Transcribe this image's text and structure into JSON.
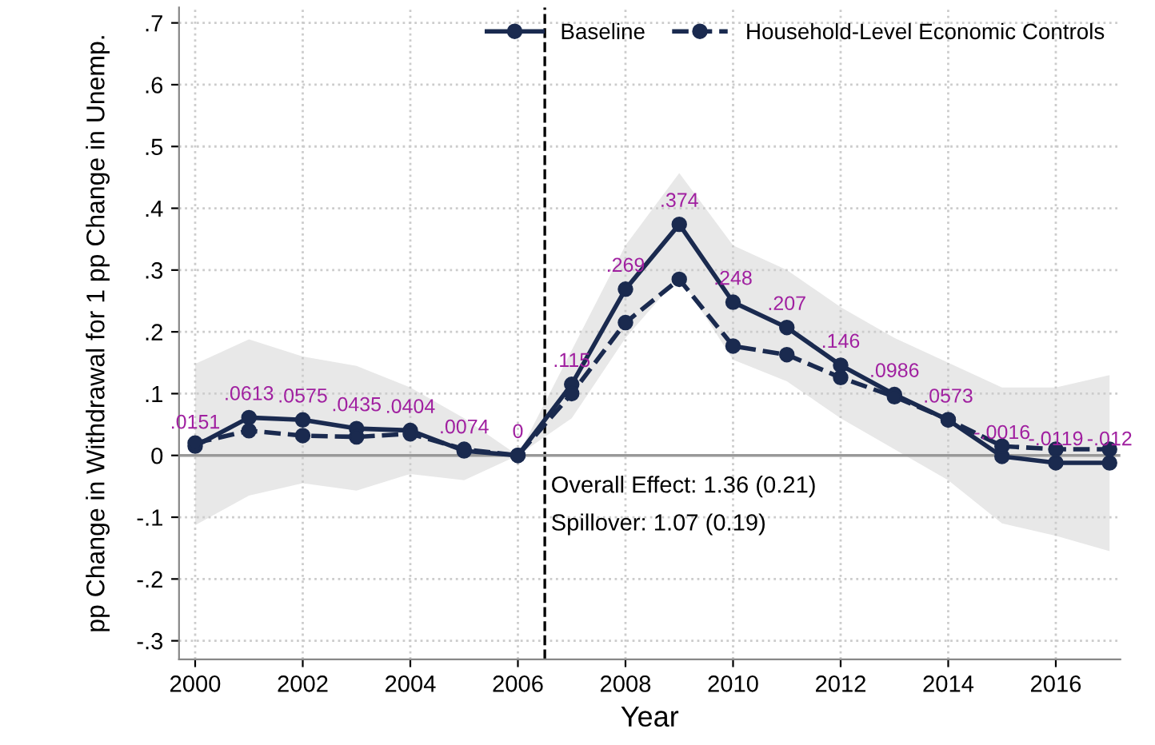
{
  "chart_data": {
    "type": "line",
    "xlabel": "Year",
    "ylabel": "pp Change in Withdrawal for 1 pp Change in Unemp.",
    "x": [
      2000,
      2001,
      2002,
      2003,
      2004,
      2005,
      2006,
      2007,
      2008,
      2009,
      2010,
      2011,
      2012,
      2013,
      2014,
      2015,
      2016,
      2017
    ],
    "series": [
      {
        "name": "Baseline",
        "color": "#1a2a4f",
        "line_style": "solid",
        "values": [
          0.0151,
          0.0613,
          0.0575,
          0.0435,
          0.0404,
          0.0074,
          0,
          0.115,
          0.269,
          0.374,
          0.248,
          0.207,
          0.146,
          0.0986,
          0.0573,
          -0.0016,
          -0.0119,
          -0.012
        ],
        "value_labels": [
          ".0151",
          ".0613",
          ".0575",
          ".0435",
          ".0404",
          ".0074",
          "0",
          ".115",
          ".269",
          ".374",
          ".248",
          ".207",
          ".146",
          ".0986",
          ".0573",
          "-.0016",
          "-.0119",
          "-.012"
        ],
        "lower": [
          -0.113,
          -0.065,
          -0.045,
          -0.057,
          -0.03,
          -0.04,
          0,
          0.06,
          0.19,
          0.29,
          0.155,
          0.12,
          0.06,
          0.01,
          -0.04,
          -0.11,
          -0.13,
          -0.155
        ],
        "upper": [
          0.148,
          0.188,
          0.16,
          0.145,
          0.11,
          0.06,
          0,
          0.17,
          0.34,
          0.457,
          0.34,
          0.3,
          0.24,
          0.19,
          0.15,
          0.11,
          0.11,
          0.13
        ]
      },
      {
        "name": "Household-Level Economic Controls",
        "color": "#1a2a4f",
        "line_style": "dashed",
        "values": [
          0.02,
          0.04,
          0.032,
          0.03,
          0.035,
          0.01,
          0,
          0.1,
          0.215,
          0.285,
          0.177,
          0.163,
          0.126,
          0.095,
          0.058,
          0.015,
          0.01,
          0.01
        ]
      }
    ],
    "marker": "circle",
    "grid": true,
    "legend": "top right",
    "xlim": [
      1999.7,
      2017.2
    ],
    "xticks": [
      2000,
      2002,
      2004,
      2006,
      2008,
      2010,
      2012,
      2014,
      2016
    ],
    "ylim": [
      -0.33,
      0.725
    ],
    "yticks": [
      {
        "value": -0.3,
        "label": "-.3"
      },
      {
        "value": -0.2,
        "label": "-.2"
      },
      {
        "value": -0.1,
        "label": "-.1"
      },
      {
        "value": 0,
        "label": "0"
      },
      {
        "value": 0.1,
        "label": ".1"
      },
      {
        "value": 0.2,
        "label": ".2"
      },
      {
        "value": 0.3,
        "label": ".3"
      },
      {
        "value": 0.4,
        "label": ".4"
      },
      {
        "value": 0.5,
        "label": ".5"
      },
      {
        "value": 0.6,
        "label": ".6"
      },
      {
        "value": 0.7,
        "label": ".7"
      }
    ],
    "ref_lines": [
      {
        "axis": "x",
        "value": 2006.5,
        "color": "#000000",
        "line_style": "dashed"
      },
      {
        "axis": "y",
        "value": 0,
        "color": "#999999",
        "line_style": "solid"
      }
    ],
    "annotations": [
      "Overall Effect: 1.36 (0.21)",
      "Spillover: 1.07 (0.19)"
    ]
  }
}
